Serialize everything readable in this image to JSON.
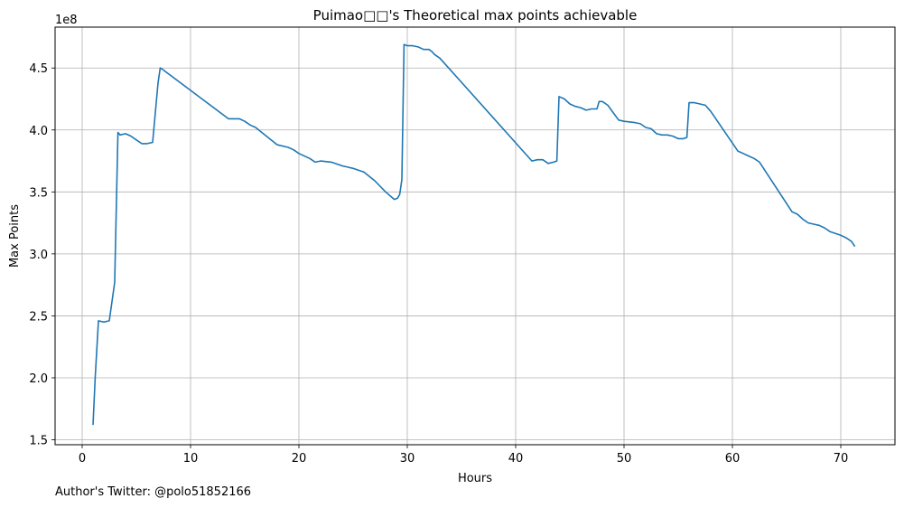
{
  "chart_data": {
    "type": "line",
    "title": "Puimao□□'s Theoretical max points achievable",
    "xlabel": "Hours",
    "ylabel": "Max Points",
    "y_multiplier_label": "1e8",
    "xlim": [
      -2.5,
      75
    ],
    "ylim": [
      1.46,
      4.83
    ],
    "xticks": [
      0,
      10,
      20,
      30,
      40,
      50,
      60,
      70
    ],
    "xtick_labels": [
      "0",
      "10",
      "20",
      "30",
      "40",
      "50",
      "60",
      "70"
    ],
    "yticks": [
      1.5,
      2.0,
      2.5,
      3.0,
      3.5,
      4.0,
      4.5
    ],
    "ytick_labels": [
      "1.5",
      "2.0",
      "2.5",
      "3.0",
      "3.5",
      "4.0",
      "4.5"
    ],
    "grid": true,
    "legend": "none",
    "series": [
      {
        "color": "#1f77b4",
        "x": [
          1.0,
          1.2,
          1.5,
          2.0,
          2.5,
          3.0,
          3.3,
          3.5,
          4.0,
          4.5,
          5.0,
          5.5,
          6.0,
          6.5,
          7.0,
          7.2,
          7.4,
          13.5,
          14.5,
          15.0,
          15.5,
          16.0,
          17.0,
          18.0,
          19.0,
          19.5,
          20.0,
          21.0,
          21.5,
          22.0,
          23.0,
          24.0,
          24.5,
          25.0,
          26.0,
          27.0,
          28.0,
          28.8,
          29.1,
          29.3,
          29.5,
          29.7,
          30.0,
          30.5,
          31.0,
          31.5,
          32.0,
          32.3,
          32.5,
          33.0,
          41.5,
          42.0,
          42.5,
          43.0,
          43.5,
          43.8,
          44.0,
          44.5,
          45.0,
          45.5,
          46.0,
          46.5,
          47.0,
          47.5,
          47.7,
          48.0,
          48.5,
          49.0,
          49.5,
          50.0,
          51.0,
          51.5,
          52.0,
          52.5,
          53.0,
          53.5,
          54.0,
          54.5,
          55.0,
          55.5,
          55.8,
          56.0,
          56.5,
          57.0,
          57.5,
          58.0,
          60.5,
          61.0,
          61.5,
          62.0,
          62.5,
          65.5,
          66.0,
          66.5,
          67.0,
          67.5,
          68.0,
          68.5,
          69.0,
          70.0,
          70.5,
          71.0,
          71.3
        ],
        "y": [
          1.62,
          2.0,
          2.46,
          2.45,
          2.46,
          2.77,
          3.98,
          3.96,
          3.97,
          3.95,
          3.92,
          3.89,
          3.89,
          3.9,
          4.38,
          4.5,
          4.49,
          4.09,
          4.09,
          4.07,
          4.04,
          4.02,
          3.95,
          3.88,
          3.86,
          3.84,
          3.81,
          3.77,
          3.74,
          3.75,
          3.74,
          3.71,
          3.7,
          3.69,
          3.66,
          3.59,
          3.5,
          3.44,
          3.45,
          3.48,
          3.6,
          4.69,
          4.68,
          4.68,
          4.67,
          4.65,
          4.65,
          4.63,
          4.61,
          4.58,
          3.75,
          3.76,
          3.76,
          3.73,
          3.74,
          3.75,
          4.27,
          4.25,
          4.21,
          4.19,
          4.18,
          4.16,
          4.17,
          4.17,
          4.23,
          4.23,
          4.2,
          4.14,
          4.08,
          4.07,
          4.06,
          4.05,
          4.02,
          4.01,
          3.97,
          3.96,
          3.96,
          3.95,
          3.93,
          3.93,
          3.94,
          4.22,
          4.22,
          4.21,
          4.2,
          4.15,
          3.83,
          3.81,
          3.79,
          3.77,
          3.74,
          3.34,
          3.32,
          3.28,
          3.25,
          3.24,
          3.23,
          3.21,
          3.18,
          3.15,
          3.13,
          3.1,
          3.06
        ]
      }
    ]
  },
  "footer": {
    "text": "Author's Twitter: @polo51852166"
  }
}
